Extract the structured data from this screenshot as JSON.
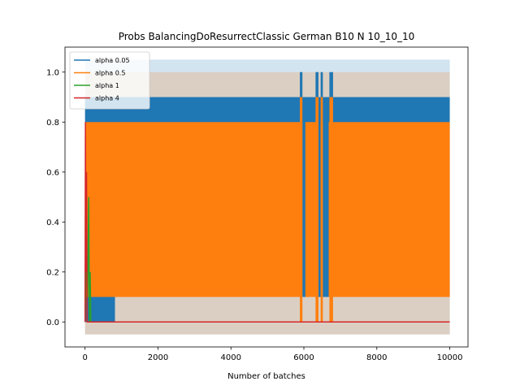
{
  "chart_data": {
    "type": "line",
    "title": "Probs BalancingDoResurrectClassic German B10 N 10_10_10",
    "xlabel": "Number of batches",
    "ylabel": "",
    "xlim": [
      -550,
      10500
    ],
    "ylim": [
      -0.1,
      1.1
    ],
    "xticks": [
      0,
      2000,
      4000,
      6000,
      8000,
      10000
    ],
    "xtick_labels": [
      "0",
      "2000",
      "4000",
      "6000",
      "8000",
      "10000"
    ],
    "yticks": [
      0.0,
      0.2,
      0.4,
      0.6,
      0.8,
      1.0
    ],
    "ytick_labels": [
      "0.0",
      "0.2",
      "0.4",
      "0.6",
      "0.8",
      "1.0"
    ],
    "grid": false,
    "legend_position": "top-left",
    "series": [
      {
        "name": "alpha 0.05",
        "color": "#1f77b4",
        "band": {
          "x_start": 0,
          "x_end": 10000,
          "low": -0.05,
          "high": 1.05
        },
        "oscillation_segments": [
          {
            "x_start": 0,
            "x_end": 820,
            "low": 0.0,
            "high": 0.9
          },
          {
            "x_start": 820,
            "x_end": 10000,
            "low": 0.1,
            "high": 0.9
          }
        ],
        "spikes": [
          {
            "x_start": 5890,
            "x_end": 5960,
            "low": 0.1,
            "high": 1.0
          },
          {
            "x_start": 6320,
            "x_end": 6400,
            "low": 0.1,
            "high": 1.0
          },
          {
            "x_start": 6460,
            "x_end": 6520,
            "low": 0.1,
            "high": 1.0
          },
          {
            "x_start": 6700,
            "x_end": 6800,
            "low": 0.1,
            "high": 1.0
          }
        ]
      },
      {
        "name": "alpha 0.5",
        "color": "#ff7f0e",
        "band": {
          "x_start": 0,
          "x_end": 10000,
          "low": -0.05,
          "high": 1.0
        },
        "oscillation_segments": [
          {
            "x_start": 0,
            "x_end": 10000,
            "low": 0.1,
            "high": 0.8
          }
        ],
        "gaps": [
          {
            "x_start": 5960,
            "x_end": 6040
          },
          {
            "x_start": 6400,
            "x_end": 6460
          },
          {
            "x_start": 6520,
            "x_end": 6680
          }
        ],
        "spikes": [
          {
            "x_start": 5890,
            "x_end": 5960,
            "low": 0.0,
            "high": 0.9
          },
          {
            "x_start": 6320,
            "x_end": 6400,
            "low": 0.0,
            "high": 0.9
          },
          {
            "x_start": 6460,
            "x_end": 6520,
            "low": 0.0,
            "high": 0.9
          },
          {
            "x_start": 6700,
            "x_end": 6800,
            "low": 0.0,
            "high": 0.9
          }
        ]
      },
      {
        "name": "alpha 1",
        "color": "#2ca02c",
        "points": [
          [
            0,
            0.0
          ],
          [
            40,
            0.3
          ],
          [
            70,
            0.1
          ],
          [
            100,
            0.5
          ],
          [
            120,
            0.0
          ],
          [
            140,
            0.2
          ],
          [
            160,
            0.0
          ],
          [
            10000,
            0.0
          ]
        ]
      },
      {
        "name": "alpha 4",
        "color": "#d62728",
        "points": [
          [
            0,
            0.0
          ],
          [
            10,
            0.8
          ],
          [
            25,
            0.2
          ],
          [
            40,
            0.6
          ],
          [
            55,
            0.0
          ],
          [
            10000,
            0.0
          ]
        ]
      }
    ]
  }
}
